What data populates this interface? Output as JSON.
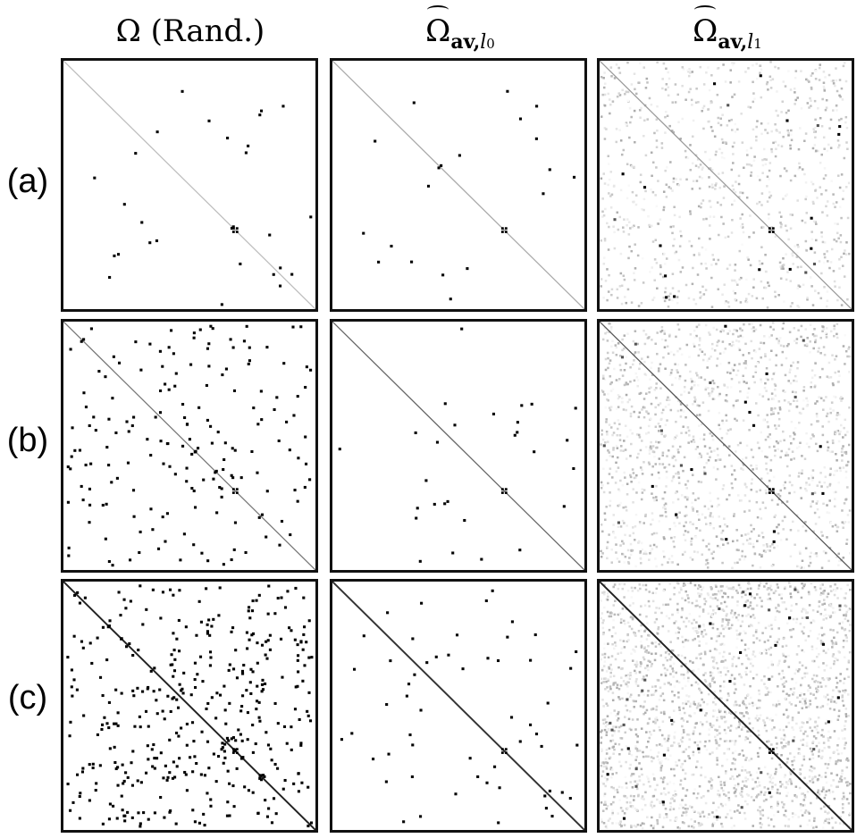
{
  "columns": [
    {
      "main": "Ω (Rand.)",
      "sub": "",
      "sub_index": ""
    },
    {
      "main": "Ω",
      "sub": "av,",
      "sub_index": "0"
    },
    {
      "main": "Ω",
      "sub": "av,",
      "sub_index": "1"
    }
  ],
  "rows": [
    {
      "label": "(a)"
    },
    {
      "label": "(b)"
    },
    {
      "label": "(c)"
    }
  ],
  "colors": {
    "border": "#111111",
    "dots": "#000000",
    "background": "#ffffff"
  }
}
